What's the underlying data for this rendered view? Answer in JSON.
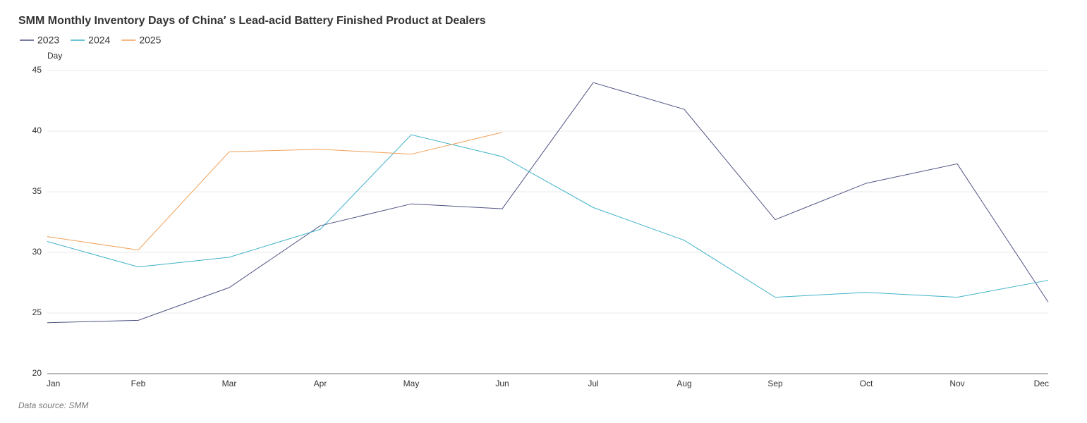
{
  "chart_data": {
    "type": "line",
    "title": "SMM Monthly Inventory Days of China′ s Lead-acid Battery Finished Product at Dealers",
    "y_label": "Day",
    "source": "Data source:  SMM",
    "categories": [
      "Jan",
      "Feb",
      "Mar",
      "Apr",
      "May",
      "Jun",
      "Jul",
      "Aug",
      "Sep",
      "Oct",
      "Nov",
      "Dec"
    ],
    "series": [
      {
        "name": "2023",
        "color": "#4e5283",
        "values": [
          24.2,
          24.4,
          27.1,
          32.2,
          34.0,
          33.6,
          44.0,
          41.8,
          32.7,
          35.7,
          37.3,
          25.9
        ]
      },
      {
        "name": "2024",
        "color": "#3fb2c9",
        "values": [
          30.9,
          28.8,
          29.6,
          31.9,
          39.7,
          37.9,
          33.7,
          31.0,
          26.3,
          26.7,
          26.3,
          27.7
        ]
      },
      {
        "name": "2025",
        "color": "#f0a15a",
        "values": [
          31.3,
          30.2,
          38.3,
          38.5,
          38.1,
          39.9,
          null,
          null,
          null,
          null,
          null,
          null
        ]
      }
    ],
    "ylim": [
      20,
      45
    ],
    "yticks": [
      20,
      25,
      30,
      35,
      40,
      45
    ],
    "grid": true
  }
}
